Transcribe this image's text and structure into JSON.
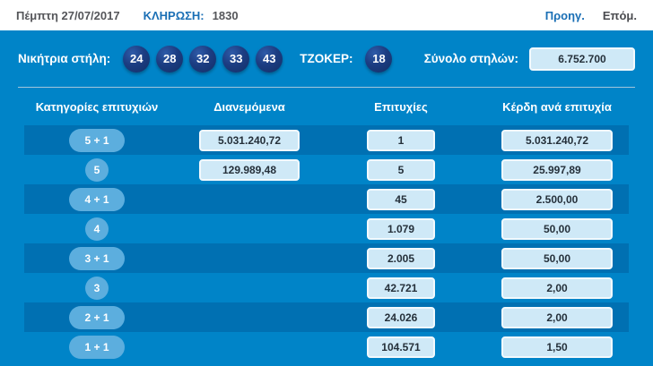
{
  "topbar": {
    "date": "Πέμπτη 27/07/2017",
    "draw_label": "ΚΛΗΡΩΣΗ:",
    "draw_number": "1830",
    "prev_label": "Προηγ.",
    "next_label": "Επόμ."
  },
  "winning": {
    "label": "Νικήτρια στήλη:",
    "numbers": [
      "24",
      "28",
      "32",
      "33",
      "43"
    ],
    "joker_label": "ΤΖΟΚΕΡ:",
    "joker_number": "18",
    "total_label": "Σύνολο στηλών:",
    "total_value": "6.752.700"
  },
  "table": {
    "headers": [
      "Κατηγορίες επιτυχιών",
      "Διανεμόμενα",
      "Επιτυχίες",
      "Κέρδη ανά επιτυχία"
    ],
    "rows": [
      {
        "category": "5 + 1",
        "distributed": "5.031.240,72",
        "winners": "1",
        "prize": "5.031.240,72"
      },
      {
        "category": "5",
        "distributed": "129.989,48",
        "winners": "5",
        "prize": "25.997,89"
      },
      {
        "category": "4 + 1",
        "distributed": "",
        "winners": "45",
        "prize": "2.500,00"
      },
      {
        "category": "4",
        "distributed": "",
        "winners": "1.079",
        "prize": "50,00"
      },
      {
        "category": "3 + 1",
        "distributed": "",
        "winners": "2.005",
        "prize": "50,00"
      },
      {
        "category": "3",
        "distributed": "",
        "winners": "42.721",
        "prize": "2,00"
      },
      {
        "category": "2 + 1",
        "distributed": "",
        "winners": "24.026",
        "prize": "2,00"
      },
      {
        "category": "1 + 1",
        "distributed": "",
        "winners": "104.571",
        "prize": "1,50"
      }
    ]
  },
  "colors": {
    "panel_blue": "#0084c8",
    "stripe_blue": "#0070b2",
    "ball_navy": "#1c3d82",
    "pill_blue": "#5caede",
    "box_fill": "#cfe9f7",
    "accent_blue": "#1a6fb5",
    "topbar_text": "#55565a"
  }
}
